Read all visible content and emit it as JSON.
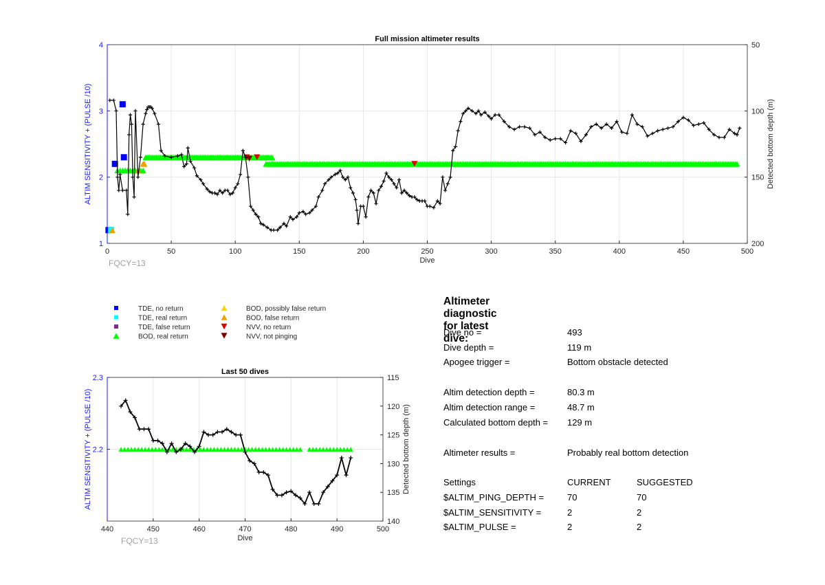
{
  "colors": {
    "axis_left": "#1a1aff",
    "axis_right": "#000000",
    "depth_line": "#000000",
    "grid": "#e6e6e6",
    "fqcy": "#a0a0a0",
    "tde_no_return": "#0000ff",
    "tde_real_return": "#00ffff",
    "tde_false_return": "#7e2f8e",
    "bod_real_return": "#00ff00",
    "bod_possibly_false": "#ffd700",
    "bod_false": "#f0a000",
    "nvv_no_return": "#e00000",
    "nvv_not_pinging": "#800000"
  },
  "chart_data": [
    {
      "id": "full",
      "type": "line",
      "title": "Full mission altimeter results",
      "xlabel": "Dive",
      "ylabel_left": "ALTIM SENSITIVITY + (PULSE /10)",
      "ylabel_right": "Detected bottom depth (m)",
      "xlim": [
        0,
        500
      ],
      "ylim_left": [
        1,
        4
      ],
      "ylim_right": [
        200,
        50
      ],
      "right_axis_reversed": true,
      "xticks": [
        "0",
        "50",
        "100",
        "150",
        "200",
        "250",
        "300",
        "350",
        "400",
        "450",
        "500"
      ],
      "yticks_left": [
        "1",
        "2",
        "3",
        "4"
      ],
      "yticks_right": [
        "50",
        "100",
        "150",
        "200"
      ],
      "grid": true,
      "annotation": "FQCY=13",
      "depth_series": {
        "name": "Detected bottom depth",
        "x": [
          2,
          5,
          7,
          8,
          9,
          10,
          12,
          15,
          16,
          17,
          18,
          19,
          20,
          21,
          22,
          24,
          26,
          28,
          30,
          31,
          32,
          33,
          34,
          35,
          37,
          40,
          42,
          45,
          50,
          55,
          58,
          60,
          62,
          63,
          65,
          68,
          70,
          73,
          75,
          78,
          80,
          82,
          84,
          86,
          88,
          90,
          92,
          94,
          96,
          98,
          100,
          102,
          104,
          106,
          108,
          110,
          112,
          114,
          116,
          118,
          120,
          122,
          125,
          128,
          130,
          133,
          135,
          138,
          140,
          143,
          145,
          148,
          150,
          153,
          155,
          158,
          160,
          163,
          165,
          168,
          170,
          173,
          175,
          178,
          180,
          182,
          184,
          186,
          188,
          190,
          192,
          194,
          195,
          196,
          198,
          200,
          202,
          204,
          206,
          208,
          210,
          212,
          214,
          216,
          218,
          220,
          222,
          224,
          226,
          228,
          230,
          232,
          234,
          236,
          238,
          240,
          242,
          244,
          246,
          248,
          250,
          252,
          255,
          258,
          260,
          262,
          264,
          266,
          268,
          270,
          272,
          274,
          276,
          278,
          280,
          282,
          285,
          288,
          290,
          292,
          295,
          298,
          300,
          303,
          306,
          310,
          314,
          318,
          322,
          326,
          330,
          334,
          338,
          342,
          346,
          350,
          354,
          358,
          362,
          366,
          370,
          374,
          378,
          382,
          386,
          390,
          394,
          398,
          402,
          406,
          410,
          414,
          418,
          422,
          426,
          430,
          434,
          438,
          442,
          446,
          450,
          454,
          458,
          462,
          466,
          470,
          474,
          478,
          482,
          486,
          490,
          492,
          494
        ],
        "y": [
          92,
          92,
          100,
          150,
          160,
          148,
          160,
          160,
          178,
          118,
          103,
          110,
          150,
          165,
          100,
          150,
          135,
          110,
          102,
          99,
          97,
          97,
          97,
          98,
          102,
          110,
          130,
          134,
          135,
          134,
          133,
          142,
          140,
          128,
          138,
          143,
          149,
          152,
          155,
          159,
          161,
          162,
          162,
          163,
          160,
          162,
          160,
          160,
          163,
          162,
          158,
          155,
          148,
          130,
          135,
          150,
          172,
          175,
          178,
          180,
          185,
          186,
          188,
          190,
          190,
          190,
          188,
          185,
          187,
          180,
          182,
          180,
          177,
          176,
          178,
          177,
          175,
          172,
          165,
          160,
          155,
          152,
          150,
          148,
          147,
          145,
          150,
          152,
          150,
          158,
          162,
          167,
          175,
          185,
          172,
          172,
          180,
          165,
          160,
          162,
          170,
          160,
          157,
          153,
          147,
          150,
          152,
          155,
          158,
          152,
          162,
          160,
          162,
          164,
          165,
          165,
          167,
          168,
          168,
          168,
          172,
          172,
          173,
          168,
          170,
          150,
          160,
          155,
          150,
          130,
          127,
          115,
          108,
          102,
          100,
          98,
          100,
          102,
          100,
          103,
          101,
          104,
          106,
          103,
          103,
          108,
          112,
          114,
          112,
          112,
          113,
          118,
          116,
          120,
          122,
          121,
          121,
          124,
          115,
          117,
          123,
          118,
          112,
          110,
          113,
          110,
          113,
          108,
          116,
          117,
          103,
          110,
          112,
          119,
          117,
          115,
          114,
          113,
          112,
          108,
          105,
          107,
          111,
          110,
          109,
          114,
          118,
          120,
          120,
          114,
          117,
          118,
          113
        ],
        "markers": "+"
      },
      "marker_series": [
        {
          "name": "TDE, no return",
          "type": "square",
          "points": [
            [
              1,
              1.2
            ],
            [
              6,
              2.2
            ],
            [
              12,
              3.1
            ],
            [
              13,
              2.3
            ]
          ]
        },
        {
          "name": "TDE, real return",
          "type": "square",
          "points": [
            [
              3,
              1.2
            ]
          ]
        },
        {
          "name": "BOD, real return",
          "type": "triangle-up",
          "x_start": 8,
          "x_end": 28,
          "y": 2.1,
          "step": 2
        },
        {
          "name": "BOD, real return",
          "type": "triangle-up",
          "x_start": 30,
          "x_end": 130,
          "y": 2.3,
          "step": 1.3
        },
        {
          "name": "BOD, real return",
          "type": "triangle-up",
          "x_start": 124,
          "x_end": 493,
          "y": 2.2,
          "step": 1.3
        },
        {
          "name": "BOD, false return",
          "type": "triangle-up",
          "points": [
            [
              4,
              1.2
            ],
            [
              28,
              2.2
            ],
            [
              29,
              2.2
            ],
            [
              24,
              2.1
            ]
          ]
        },
        {
          "name": "NVV, no return",
          "type": "triangle-down",
          "points": [
            [
              109,
              2.3
            ],
            [
              117,
              2.3
            ],
            [
              240,
              2.2
            ]
          ]
        },
        {
          "name": "NVV, not pinging",
          "type": "triangle-down",
          "points": [
            [
              111,
              2.28
            ]
          ]
        }
      ]
    },
    {
      "id": "last50",
      "type": "line",
      "title": "Last 50 dives",
      "xlabel": "Dive",
      "ylabel_left": "ALTIM SENSITIVITY + (PULSE /10)",
      "ylabel_right": "Detected bottom depth (m)",
      "xlim": [
        440,
        500
      ],
      "ylim_left": [
        2.1,
        2.3
      ],
      "ylim_right": [
        140,
        115
      ],
      "right_axis_reversed": true,
      "xticks": [
        "440",
        "450",
        "460",
        "470",
        "480",
        "490",
        "500"
      ],
      "yticks_left": [
        "2.2",
        "2.3"
      ],
      "yticks_right": [
        "115",
        "120",
        "125",
        "130",
        "135",
        "140"
      ],
      "grid": true,
      "annotation": "FQCY=13",
      "depth_series": {
        "name": "Detected bottom depth",
        "x": [
          443,
          444,
          445,
          446,
          447,
          448,
          449,
          450,
          451,
          452,
          453,
          454,
          455,
          456,
          457,
          458,
          459,
          460,
          461,
          462,
          463,
          464,
          465,
          466,
          467,
          468,
          469,
          470,
          471,
          472,
          473,
          474,
          475,
          476,
          477,
          478,
          479,
          480,
          481,
          482,
          483,
          484,
          485,
          486,
          487,
          488,
          489,
          490,
          491,
          492,
          493
        ],
        "y": [
          120,
          119,
          121,
          122,
          124,
          124,
          124,
          126,
          126,
          126.5,
          128,
          126.5,
          128,
          127.5,
          126.5,
          127,
          128,
          127,
          124.5,
          125,
          125,
          124.5,
          124.5,
          124,
          124.5,
          125,
          125,
          128,
          129.5,
          130,
          131.5,
          131.5,
          132,
          134.5,
          135.5,
          135.5,
          135,
          134.8,
          135.5,
          136,
          137,
          135,
          137,
          137,
          135,
          134,
          133,
          132,
          129,
          132,
          129
        ],
        "markers": "+"
      },
      "marker_series": [
        {
          "name": "BOD, real return",
          "type": "triangle-up",
          "x_start": 443,
          "x_end": 482.5,
          "y": 2.2,
          "step": 0.75
        },
        {
          "name": "BOD, real return",
          "type": "triangle-up",
          "x_start": 484,
          "x_end": 493,
          "y": 2.2,
          "step": 0.75
        }
      ]
    }
  ],
  "legend": {
    "col1": [
      {
        "label": "TDE, no return",
        "shape": "square",
        "color_key": "tde_no_return"
      },
      {
        "label": "TDE, real return",
        "shape": "square",
        "color_key": "tde_real_return"
      },
      {
        "label": "TDE, false return",
        "shape": "square",
        "color_key": "tde_false_return"
      },
      {
        "label": "BOD, real return",
        "shape": "triangle-up",
        "color_key": "bod_real_return"
      }
    ],
    "col2": [
      {
        "label": "BOD, possibly false return",
        "shape": "triangle-up",
        "color_key": "bod_possibly_false"
      },
      {
        "label": "BOD, false return",
        "shape": "triangle-up",
        "color_key": "bod_false"
      },
      {
        "label": "NVV, no return",
        "shape": "triangle-down",
        "color_key": "nvv_no_return"
      },
      {
        "label": "NVV, not pinging",
        "shape": "triangle-down",
        "color_key": "nvv_not_pinging"
      }
    ]
  },
  "diagnostic": {
    "title": "Altimeter diagnostic for latest dive:",
    "dive_no_label": "Dive no =",
    "dive_no_value": "493",
    "dive_depth_label": "Dive depth =",
    "dive_depth_value": "119 m",
    "apogee_label": "Apogee trigger =",
    "apogee_value": "Bottom obstacle detected",
    "det_depth_label": "Altim detection depth =",
    "det_depth_value": "80.3 m",
    "det_range_label": "Altim detection range =",
    "det_range_value": "48.7 m",
    "calc_depth_label": "Calculated bottom depth =",
    "calc_depth_value": "129 m",
    "results_label": "Altimeter results =",
    "results_value": "Probably real bottom detection",
    "settings_label": "Settings",
    "current_label": "CURRENT",
    "suggested_label": "SUGGESTED",
    "settings": [
      {
        "name": "$ALTIM_PING_DEPTH =",
        "current": "70",
        "suggested": "70"
      },
      {
        "name": "$ALTIM_SENSITIVITY =",
        "current": "2",
        "suggested": "2"
      },
      {
        "name": "$ALTIM_PULSE =",
        "current": "2",
        "suggested": "2"
      }
    ]
  }
}
